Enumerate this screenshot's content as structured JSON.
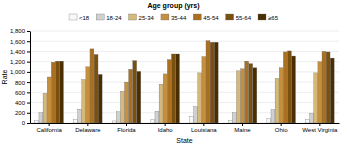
{
  "chart_data": {
    "type": "bar",
    "title": "Age group (yrs)",
    "xlabel": "State",
    "ylabel": "Rate",
    "categories": [
      "California",
      "Delaware",
      "Florida",
      "Idaho",
      "Louisiana",
      "Maine",
      "Ohio",
      "West Virginia"
    ],
    "series": [
      {
        "name": "<18",
        "color": "#f8f8f8",
        "values": [
          50,
          70,
          40,
          70,
          130,
          50,
          90,
          70
        ]
      },
      {
        "name": "18-24",
        "color": "#d0d0d0",
        "values": [
          200,
          270,
          220,
          230,
          320,
          200,
          260,
          190
        ]
      },
      {
        "name": "25-34",
        "color": "#d4b97a",
        "values": [
          580,
          850,
          620,
          760,
          980,
          1020,
          870,
          980
        ]
      },
      {
        "name": "35-44",
        "color": "#c49040",
        "values": [
          900,
          1100,
          800,
          960,
          1300,
          1060,
          1080,
          1200
        ]
      },
      {
        "name": "45-54",
        "color": "#a87020",
        "values": [
          1190,
          1450,
          1050,
          1240,
          1610,
          1210,
          1390,
          1400
        ]
      },
      {
        "name": "55-64",
        "color": "#7a5010",
        "values": [
          1210,
          1340,
          1220,
          1350,
          1580,
          1160,
          1410,
          1390
        ]
      },
      {
        "name": "≥65",
        "color": "#4a2e00",
        "values": [
          1210,
          950,
          1010,
          1350,
          1580,
          1080,
          1310,
          1270
        ]
      }
    ],
    "ylim": [
      0,
      1800
    ],
    "yticks": [
      0,
      200,
      400,
      600,
      800,
      {
        "value": 1000,
        "label": "1,000"
      },
      {
        "value": 1200,
        "label": "1,200"
      },
      {
        "value": 1400,
        "label": "1,400"
      },
      {
        "value": 1600,
        "label": "1,600"
      },
      {
        "value": 1800,
        "label": "1,800"
      }
    ],
    "grid": true,
    "legend": "top"
  }
}
